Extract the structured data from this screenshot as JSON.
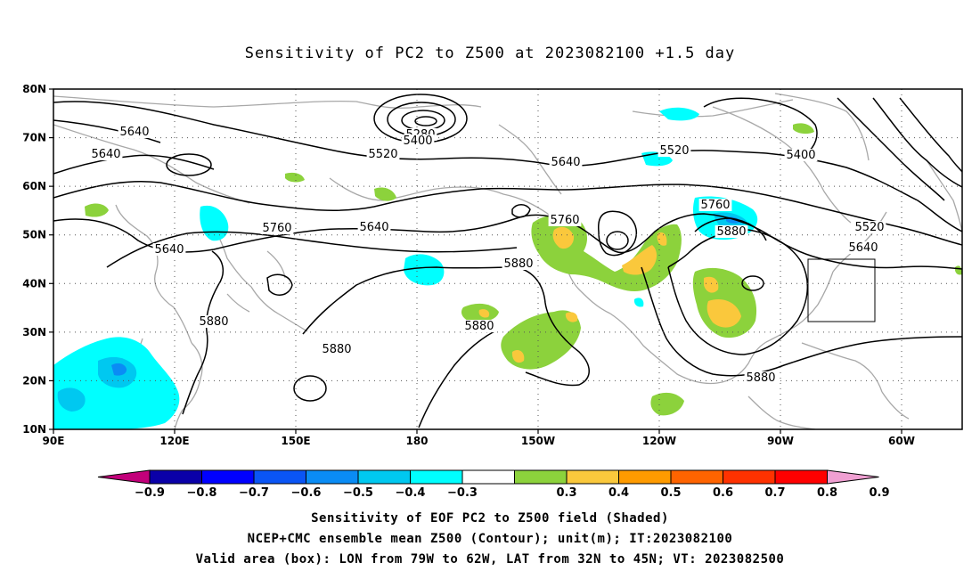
{
  "title": "Sensitivity of PC2 to Z500 at 2023082100 +1.5 day",
  "captions": [
    "Sensitivity of EOF PC2 to Z500 field (Shaded)",
    "NCEP+CMC ensemble mean Z500 (Contour); unit(m); IT:2023082100",
    "Valid area (box): LON from 79W to 62W, LAT from 32N to 45N; VT: 2023082500"
  ],
  "map": {
    "lon_ticks": [
      "90E",
      "120E",
      "150E",
      "180",
      "150W",
      "120W",
      "90W",
      "60W"
    ],
    "lat_ticks": [
      "80N",
      "70N",
      "60N",
      "50N",
      "40N",
      "30N",
      "20N",
      "10N"
    ],
    "lon_range": [
      90,
      315
    ],
    "lat_range": [
      10,
      80
    ],
    "valid_box": {
      "lon_from": "79W",
      "lon_to": "62W",
      "lat_from": "32N",
      "lat_to": "45N"
    },
    "contour_labels": [
      "5640",
      "5640",
      "5640",
      "5280",
      "5400",
      "5520",
      "5640",
      "5520",
      "5400",
      "5760",
      "5640",
      "5760",
      "5520",
      "5640",
      "5880",
      "5880",
      "5880",
      "5880",
      "5760",
      "5880",
      "5880"
    ]
  },
  "colorbar": {
    "labels": [
      "−0.9",
      "−0.8",
      "−0.7",
      "−0.6",
      "−0.5",
      "−0.4",
      "−0.3",
      "0.3",
      "0.4",
      "0.5",
      "0.6",
      "0.7",
      "0.8",
      "0.9"
    ],
    "colors": [
      "#c2007a",
      "#0a00a8",
      "#0000ff",
      "#0a55f5",
      "#0a8cf5",
      "#00c8f0",
      "#00ffff",
      "#ffffff",
      "#8cd23c",
      "#fac83c",
      "#ff9b00",
      "#ff6400",
      "#ff3200",
      "#ff0000",
      "#f0a0d2"
    ]
  }
}
